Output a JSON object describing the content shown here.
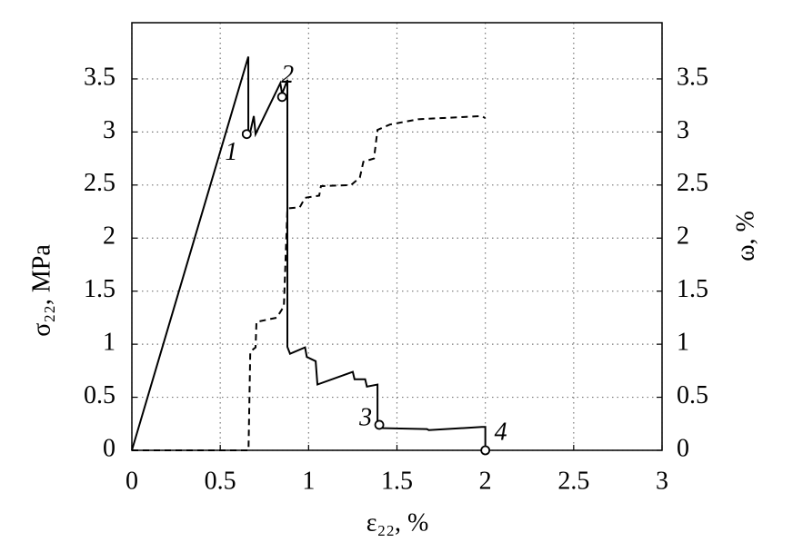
{
  "chart_data": {
    "type": "line",
    "x_label": "ε₂₂, %",
    "y_label": "σ₂₂, MPa",
    "y2_label": "ω, %",
    "xlim": [
      0,
      3
    ],
    "xticks": [
      0,
      0.5,
      1,
      1.5,
      2,
      2.5,
      3
    ],
    "ylim": [
      0,
      4.03
    ],
    "yticks": [
      0,
      0.5,
      1,
      1.5,
      2,
      2.5,
      3,
      3.5
    ],
    "y2lim": [
      0,
      4.03
    ],
    "y2ticks": [
      0,
      0.5,
      1,
      1.5,
      2,
      2.5,
      3,
      3.5
    ],
    "grid": true,
    "series": [
      {
        "color": "#000000",
        "dashed": false,
        "x": [
          0,
          0.659,
          0.659,
          0.67,
          0.69,
          0.7,
          0.84,
          0.85,
          0.88,
          0.88,
          0.895,
          0.98,
          0.99,
          1.04,
          1.05,
          1.25,
          1.26,
          1.32,
          1.33,
          1.39,
          1.39,
          1.67,
          1.68,
          1.98,
          2.0,
          2.0
        ],
        "values": [
          0,
          3.71,
          3.0,
          3.0,
          3.15,
          2.98,
          3.46,
          3.36,
          3.49,
          0.975,
          0.91,
          0.97,
          0.88,
          0.84,
          0.62,
          0.74,
          0.67,
          0.67,
          0.6,
          0.62,
          0.21,
          0.2,
          0.19,
          0.22,
          0.22,
          0
        ]
      },
      {
        "color": "#000000",
        "dashed": true,
        "axis": "y2",
        "x": [
          0,
          0.66,
          0.67,
          0.7,
          0.705,
          0.82,
          0.85,
          0.86,
          0.88,
          0.95,
          0.98,
          1.06,
          1.07,
          1.24,
          1.29,
          1.31,
          1.37,
          1.39,
          1.46,
          1.62,
          1.98,
          2.0
        ],
        "values": [
          0,
          0,
          0.93,
          0.97,
          1.21,
          1.25,
          1.33,
          1.35,
          2.28,
          2.29,
          2.38,
          2.4,
          2.49,
          2.5,
          2.57,
          2.72,
          2.75,
          3.02,
          3.07,
          3.12,
          3.15,
          3.13
        ]
      }
    ],
    "annotations": [
      {
        "text": "1",
        "x": 0.65,
        "y": 2.98
      },
      {
        "text": "2",
        "x": 0.85,
        "y": 3.33
      },
      {
        "text": "3",
        "x": 1.4,
        "y": 0.24
      },
      {
        "text": "4",
        "x": 2.0,
        "y": 0
      }
    ]
  }
}
